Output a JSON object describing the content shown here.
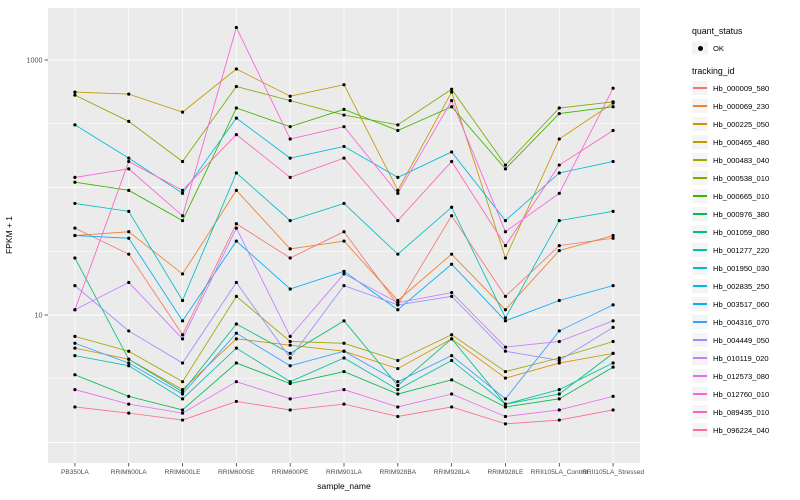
{
  "colors": {
    "panel_bg": "#EBEBEB",
    "grid_major": "#FFFFFF",
    "grid_minor": "#FFFFFF",
    "tick": "#333333",
    "tick_label": "#4D4D4D",
    "point": "#000000"
  },
  "legend": {
    "quant_status_title": "quant_status",
    "quant_status_items": [
      {
        "label": "OK",
        "shape": "point",
        "color": "#000000"
      }
    ],
    "tracking_title": "tracking_id"
  },
  "chart_data": {
    "type": "line",
    "title": "",
    "xlabel": "sample_name",
    "ylabel": "FPKM + 1",
    "y_scale": "log10",
    "grid": true,
    "legend_position": "right",
    "y_ticks": [
      {
        "value": 1000,
        "label": "1000"
      },
      {
        "value": 10,
        "label": "10"
      }
    ],
    "y_major_gridlines": [
      1,
      10,
      100,
      1000
    ],
    "y_minor_gridlines": [
      3.162,
      31.62,
      316.2
    ],
    "ylim": [
      0.7,
      2600
    ],
    "categories": [
      "PB350LA",
      "RRIM600LA",
      "RRIM600LE",
      "RRIM600SE",
      "RRIM600PE",
      "RRIM901LA",
      "RRIM928BA",
      "RRIM928LA",
      "RRIM928LE",
      "RRII105LA_Control",
      "RRII105LA_Stressed"
    ],
    "series": [
      {
        "name": "Hb_000009_580",
        "color": "#F8766D",
        "values": [
          48,
          30,
          7,
          52,
          28,
          45,
          12,
          60,
          14,
          35,
          40
        ]
      },
      {
        "name": "Hb_000069_230",
        "color": "#EA8331",
        "values": [
          42,
          45,
          21,
          95,
          33,
          38,
          13,
          30,
          11,
          32,
          42
        ]
      },
      {
        "name": "Hb_000225_050",
        "color": "#D89000",
        "values": [
          5.5,
          4.5,
          2.6,
          6.5,
          5.8,
          5.2,
          3.8,
          6.5,
          3.2,
          4.2,
          5.0
        ]
      },
      {
        "name": "Hb_000465_480",
        "color": "#C09B00",
        "values": [
          560,
          540,
          390,
          850,
          520,
          640,
          95,
          560,
          28,
          240,
          460
        ]
      },
      {
        "name": "Hb_000483_040",
        "color": "#A3A500",
        "values": [
          6.8,
          5.2,
          3.0,
          14,
          6.2,
          6.0,
          4.4,
          7.0,
          3.6,
          4.6,
          6.2
        ]
      },
      {
        "name": "Hb_000538_010",
        "color": "#7CAE00",
        "values": [
          530,
          330,
          160,
          620,
          480,
          370,
          310,
          590,
          150,
          420,
          470
        ]
      },
      {
        "name": "Hb_000665_010",
        "color": "#39B600",
        "values": [
          110,
          95,
          55,
          420,
          300,
          410,
          280,
          430,
          140,
          380,
          430
        ]
      },
      {
        "name": "Hb_000976_380",
        "color": "#00BB4E",
        "values": [
          3.4,
          2.3,
          1.8,
          4.2,
          2.9,
          3.6,
          2.4,
          3.1,
          1.9,
          2.2,
          3.9
        ]
      },
      {
        "name": "Hb_001059_080",
        "color": "#00BF7D",
        "values": [
          28,
          4.5,
          2.5,
          8.5,
          5.0,
          9.0,
          2.8,
          6.5,
          2.0,
          2.4,
          5.0
        ]
      },
      {
        "name": "Hb_001277_220",
        "color": "#00C1A3",
        "values": [
          4.8,
          4.0,
          2.2,
          5.5,
          3.0,
          4.6,
          2.6,
          4.4,
          2.0,
          2.6,
          4.2
        ]
      },
      {
        "name": "Hb_001950_030",
        "color": "#00BFC4",
        "values": [
          75,
          65,
          13,
          130,
          55,
          75,
          30,
          70,
          9.5,
          55,
          65
        ]
      },
      {
        "name": "Hb_002835_250",
        "color": "#00BAE0",
        "values": [
          310,
          170,
          90,
          350,
          170,
          210,
          120,
          190,
          55,
          130,
          160
        ]
      },
      {
        "name": "Hb_003517_060",
        "color": "#00B0F6",
        "values": [
          42,
          40,
          9,
          38,
          16,
          22,
          11,
          25,
          9,
          13,
          17
        ]
      },
      {
        "name": "Hb_004316_070",
        "color": "#35A2FF",
        "values": [
          6.0,
          4.2,
          2.4,
          7.2,
          4.0,
          5.2,
          3.0,
          4.8,
          2.2,
          7.5,
          12
        ]
      },
      {
        "name": "Hb_004449_050",
        "color": "#9590FF",
        "values": [
          17,
          7.5,
          4.2,
          18,
          4.6,
          17,
          12,
          14,
          5.2,
          4.4,
          8.0
        ]
      },
      {
        "name": "Hb_010119_020",
        "color": "#C77CFF",
        "values": [
          11,
          18,
          6.5,
          48,
          6.8,
          21,
          12.5,
          15,
          5.6,
          6.2,
          9.0
        ]
      },
      {
        "name": "Hb_012573_080",
        "color": "#E76BF3",
        "values": [
          2.6,
          2.0,
          1.7,
          3.0,
          2.2,
          2.6,
          1.9,
          2.4,
          1.6,
          1.8,
          2.3
        ]
      },
      {
        "name": "Hb_012760_010",
        "color": "#FA62DB",
        "values": [
          120,
          140,
          60,
          1800,
          240,
          300,
          90,
          480,
          45,
          90,
          600
        ]
      },
      {
        "name": "Hb_089435_010",
        "color": "#FF62BC",
        "values": [
          11,
          160,
          95,
          260,
          120,
          170,
          55,
          160,
          35,
          150,
          280
        ]
      },
      {
        "name": "Hb_096224_040",
        "color": "#FF6A98",
        "values": [
          1.9,
          1.7,
          1.5,
          2.1,
          1.8,
          2.0,
          1.6,
          1.9,
          1.4,
          1.5,
          1.8
        ]
      }
    ]
  }
}
